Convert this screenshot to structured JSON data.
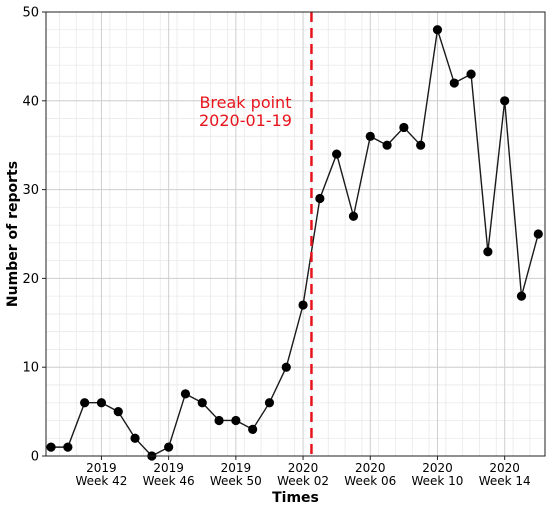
{
  "chart_data": {
    "type": "line",
    "title": "",
    "xlabel": "Times",
    "ylabel": "Number of reports",
    "ylim": [
      0,
      50
    ],
    "xlim": [
      0.2,
      29.9
    ],
    "yticks": [
      0,
      10,
      20,
      30,
      40,
      50
    ],
    "xticks": [
      {
        "x": 3.5,
        "line1": "2019",
        "line2": "Week 42"
      },
      {
        "x": 7.5,
        "line1": "2019",
        "line2": "Week 46"
      },
      {
        "x": 11.5,
        "line1": "2019",
        "line2": "Week 50"
      },
      {
        "x": 15.5,
        "line1": "2020",
        "line2": "Week 02"
      },
      {
        "x": 19.5,
        "line1": "2020",
        "line2": "Week 06"
      },
      {
        "x": 23.5,
        "line1": "2020",
        "line2": "Week 10"
      },
      {
        "x": 27.5,
        "line1": "2020",
        "line2": "Week 14"
      }
    ],
    "grid": true,
    "series": [
      {
        "x": [
          0.5,
          1.5,
          2.5,
          3.5,
          4.5,
          5.5,
          6.5,
          7.5,
          8.5,
          9.5,
          10.5,
          11.5,
          12.5,
          13.5,
          14.5,
          15.5,
          16.5,
          17.5,
          18.5,
          19.5,
          20.5,
          21.5,
          22.5,
          23.5,
          24.5,
          25.5,
          26.5,
          27.5,
          28.5,
          29.5
        ],
        "values": [
          1,
          1,
          6,
          6,
          5,
          2,
          0,
          1,
          7,
          6,
          4,
          4,
          3,
          6,
          10,
          17,
          29,
          34,
          27,
          36,
          35,
          37,
          35,
          48,
          42,
          43,
          23,
          40,
          18,
          25
        ],
        "color": "#1a1a1a"
      }
    ],
    "break_point": {
      "x": 16.0,
      "color": "#e8141b",
      "label_line1": "Break point",
      "label_line2": "2020-01-19"
    }
  }
}
